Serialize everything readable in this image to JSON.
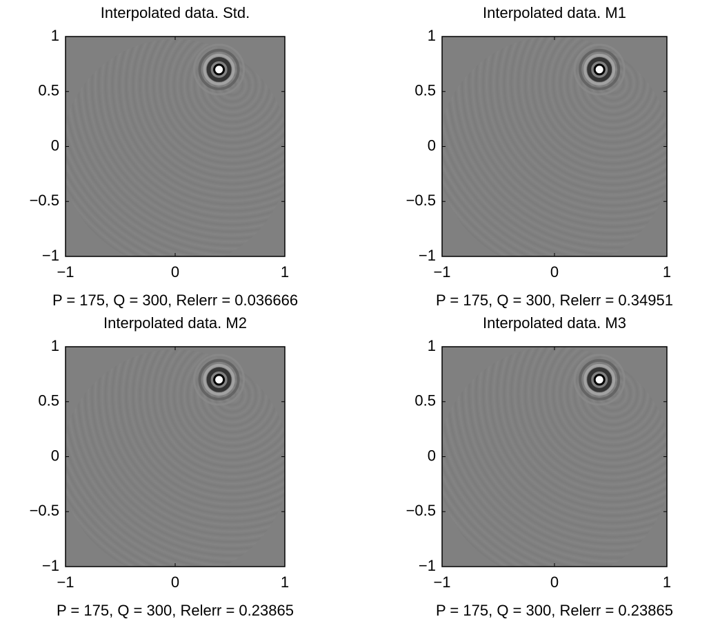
{
  "chart_data": [
    {
      "type": "image",
      "title": "Interpolated data. Std.",
      "xlabel": "P = 175, Q = 300, Relerr = 0.036666",
      "xlim": [
        -1,
        1
      ],
      "ylim": [
        -1,
        1
      ],
      "xticks": [
        {
          "value": -1,
          "label": "−1"
        },
        0,
        1
      ],
      "yticks": [
        {
          "value": -1,
          "label": "−1"
        },
        {
          "value": -0.5,
          "label": "−0.5"
        },
        0,
        0.5,
        1
      ]
    },
    {
      "type": "image",
      "title": "Interpolated data.  M1",
      "xlabel": "P = 175, Q = 300, Relerr = 0.34951",
      "xlim": [
        -1,
        1
      ],
      "ylim": [
        -1,
        1
      ],
      "xticks": [
        {
          "value": -1,
          "label": "−1"
        },
        0,
        1
      ],
      "yticks": [
        {
          "value": -1,
          "label": "−1"
        },
        {
          "value": -0.5,
          "label": "−0.5"
        },
        0,
        0.5,
        1
      ]
    },
    {
      "type": "image",
      "title": "Interpolated data. M2",
      "xlabel": "P = 175, Q = 300, Relerr = 0.23865",
      "xlim": [
        -1,
        1
      ],
      "ylim": [
        -1,
        1
      ],
      "xticks": [
        {
          "value": -1,
          "label": "−1"
        },
        0,
        1
      ],
      "yticks": [
        {
          "value": -1,
          "label": "−1"
        },
        {
          "value": -0.5,
          "label": "−0.5"
        },
        0,
        0.5,
        1
      ]
    },
    {
      "type": "image",
      "title": "Interpolated data. M3",
      "xlabel": "P = 175, Q = 300, Relerr = 0.23865",
      "xlim": [
        -1,
        1
      ],
      "ylim": [
        -1,
        1
      ],
      "xticks": [
        {
          "value": -1,
          "label": "−1"
        },
        0,
        1
      ],
      "yticks": [
        {
          "value": -1,
          "label": "−1"
        },
        {
          "value": -0.5,
          "label": "−0.5"
        },
        0,
        0.5,
        1
      ]
    }
  ]
}
